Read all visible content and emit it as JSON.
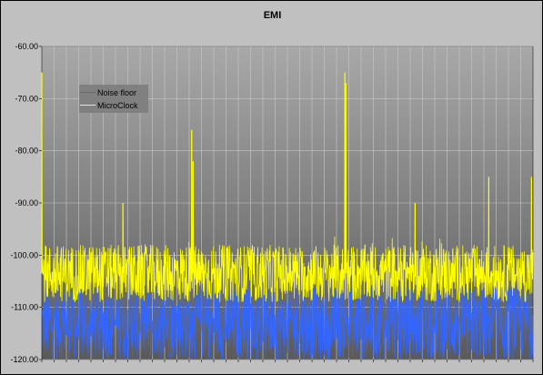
{
  "chart_data": {
    "type": "line",
    "title": "EMI",
    "xlabel": "",
    "ylabel": "",
    "ylim": [
      -120,
      -60
    ],
    "y_ticks": [
      "-60.00",
      "-70.00",
      "-80.00",
      "-90.00",
      "-100.00",
      "-110.00",
      "-120.00"
    ],
    "y_tick_values": [
      -60,
      -70,
      -80,
      -90,
      -100,
      -110,
      -120
    ],
    "x_ticks_count": 40,
    "grid": true,
    "legend_position": "top-left",
    "series": [
      {
        "name": "Noise floor",
        "color": "#3366ff",
        "baseline": -113,
        "spread": 7,
        "spikes": []
      },
      {
        "name": "MicroClock",
        "color": "#ffff00",
        "baseline": -103.5,
        "spread": 5.5,
        "spikes": [
          {
            "x": 0.0,
            "y": -65
          },
          {
            "x": 0.165,
            "y": -90
          },
          {
            "x": 0.305,
            "y": -76
          },
          {
            "x": 0.308,
            "y": -82
          },
          {
            "x": 0.617,
            "y": -65
          },
          {
            "x": 0.619,
            "y": -67
          },
          {
            "x": 0.76,
            "y": -90
          },
          {
            "x": 0.91,
            "y": -85
          },
          {
            "x": 0.997,
            "y": -85
          }
        ]
      }
    ]
  }
}
